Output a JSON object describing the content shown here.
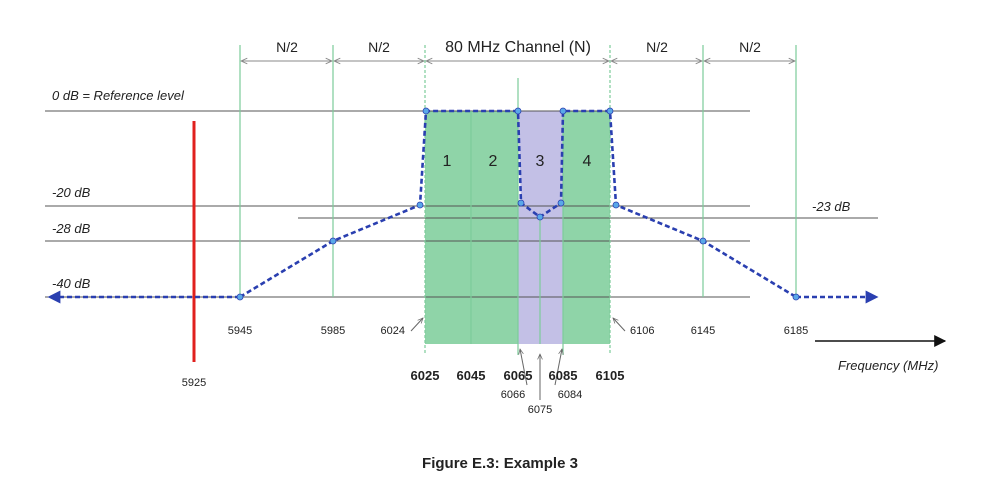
{
  "top_segments": [
    {
      "label": "N/2"
    },
    {
      "label": "N/2"
    },
    {
      "label": "80 MHz Channel (N)"
    },
    {
      "label": "N/2"
    },
    {
      "label": "N/2"
    }
  ],
  "levels": {
    "ref": "0 dB = Reference level",
    "m20": "-20 dB",
    "m28": "-28 dB",
    "m40": "-40 dB",
    "m23": "-23 dB"
  },
  "subchannels": [
    "1",
    "2",
    "3",
    "4"
  ],
  "freq_small": {
    "f5945": "5945",
    "f5985": "5985",
    "f6024": "6024",
    "f6106": "6106",
    "f6145": "6145",
    "f6185": "6185",
    "f5925": "5925",
    "f6066": "6066",
    "f6084": "6084",
    "f6075": "6075"
  },
  "freq_bold": [
    "6025",
    "6045",
    "6065",
    "6085",
    "6105"
  ],
  "axis_label": "Frequency (MHz)",
  "caption": "Figure E.3: Example 3",
  "colors": {
    "green_fill": "#8fd4a8",
    "purple_fill": "#c3c0e6",
    "mask_line": "#2a3fb0",
    "red_line": "#e0201e",
    "grid_green": "#7ccc9a"
  }
}
